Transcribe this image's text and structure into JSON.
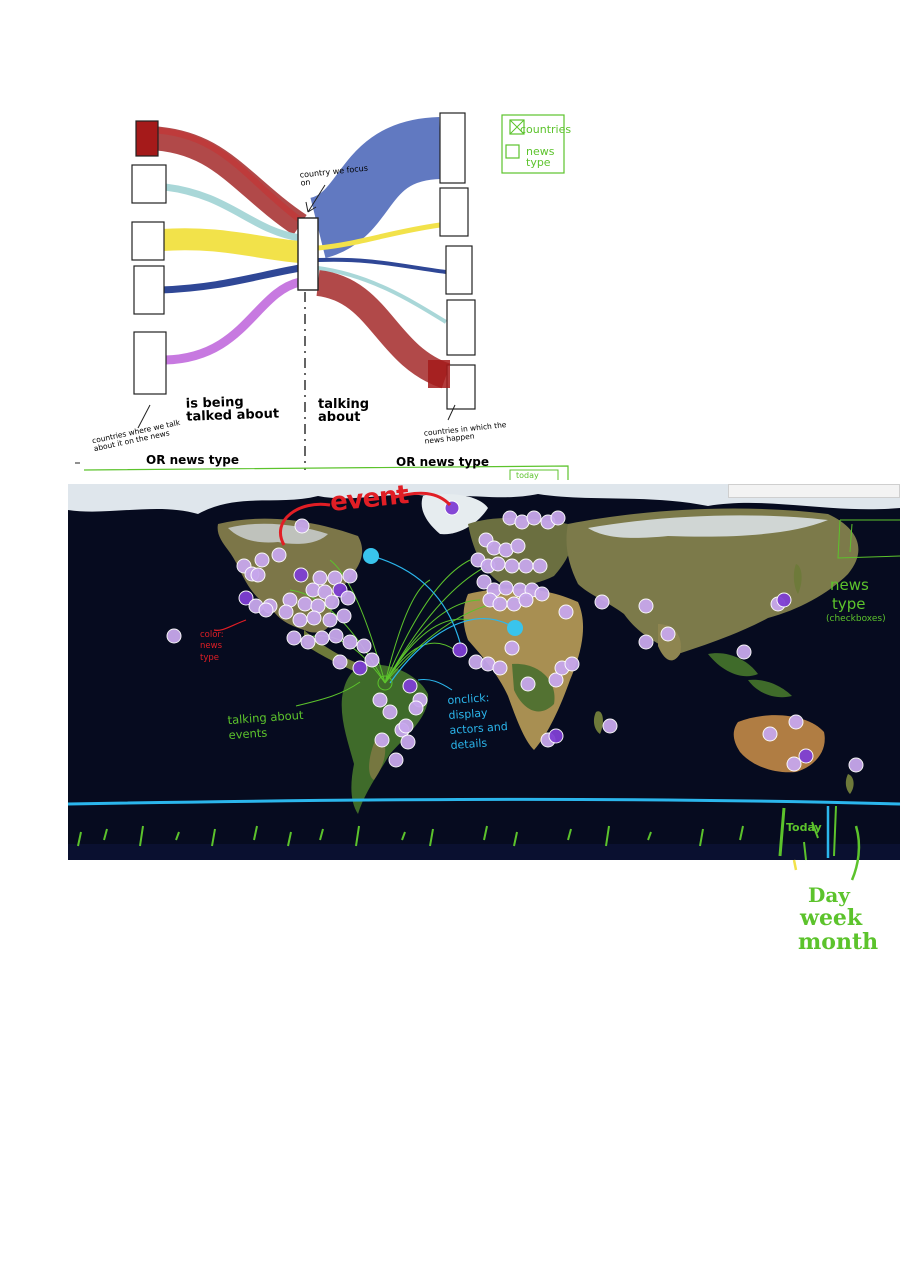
{
  "sketch": {
    "country_we_focus_on": "country we focus on",
    "is_being_talked_about": "is being talked about",
    "talking_about": "talking about",
    "countries_where_we_talk": "countries where we talk about it on the news",
    "or_news_type_left": "OR news type",
    "countries_in_which": "countries in which the news happen",
    "or_news_type_right": "OR news type",
    "legend_countries": "countries",
    "legend_news_type": "news type",
    "strip_today": "today"
  },
  "map": {
    "event_label": "event",
    "color_note": "color: news type",
    "talking_about_events": "talking about events",
    "onclick_note": [
      "onclick:",
      "display",
      "actors and",
      "details"
    ],
    "news_type_checkboxes": [
      "news",
      "type",
      "(checkboxes)"
    ],
    "search_placeholder": "",
    "today_button": "Today"
  },
  "granularity": [
    "Day",
    "week",
    "month"
  ],
  "colors": {
    "dark_red": "#9e1b1b",
    "light_blue_flow": "#a9d7d8",
    "yellow_flow": "#f2e24a",
    "navy_flow": "#2f4796",
    "violet_flow": "#c779e0",
    "blue_flow": "#3a58b2",
    "timeline_blue": "#2bb6ec",
    "annotation_green": "#5cc32c",
    "event_red": "#e11e25",
    "dot_purple": "#c7a7ec",
    "dot_dark_purple": "#7f3fd4",
    "selected_cyan": "#39c4ec",
    "ocean": "#060b1f"
  }
}
